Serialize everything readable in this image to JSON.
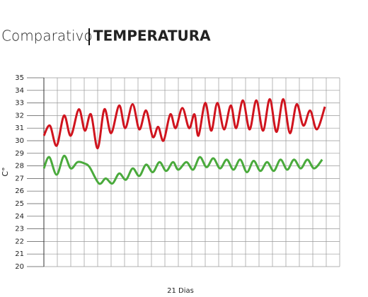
{
  "chart_data": {
    "type": "line",
    "title": "Comparativo",
    "subtitle": "TEMPERATURA",
    "y_label": "C°",
    "x_label": "21 Dias",
    "xlim": [
      0,
      22
    ],
    "ylim": [
      20,
      35
    ],
    "yticks": [
      20,
      21,
      22,
      23,
      24,
      25,
      26,
      27,
      28,
      29,
      30,
      31,
      32,
      33,
      34,
      35
    ],
    "grid": true,
    "series": [
      {
        "color": "#d0141e",
        "x": [
          0,
          0.45,
          0.95,
          1.5,
          2.0,
          2.6,
          3.05,
          3.5,
          4.0,
          4.5,
          5.0,
          5.6,
          6.05,
          6.6,
          7.1,
          7.6,
          8.1,
          8.5,
          8.9,
          9.4,
          9.8,
          10.3,
          10.8,
          11.2,
          11.5,
          12.0,
          12.45,
          12.9,
          13.4,
          13.9,
          14.3,
          14.8,
          15.3,
          15.8,
          16.3,
          16.8,
          17.3,
          17.8,
          18.3,
          18.8,
          19.3,
          19.8,
          20.3,
          20.9
        ],
        "values": [
          30.4,
          31.2,
          29.6,
          32.0,
          30.4,
          32.5,
          30.8,
          32.1,
          29.4,
          32.5,
          30.6,
          32.8,
          31.0,
          32.9,
          30.9,
          32.4,
          30.3,
          31.1,
          30.0,
          32.1,
          31.0,
          32.6,
          31.0,
          32.1,
          30.4,
          33.0,
          30.8,
          33.0,
          30.9,
          32.8,
          31.0,
          33.2,
          30.9,
          33.2,
          30.8,
          33.3,
          30.7,
          33.3,
          30.6,
          32.9,
          31.2,
          32.4,
          30.9,
          32.7
        ]
      },
      {
        "color": "#4aaa3c",
        "x": [
          0,
          0.4,
          0.95,
          1.5,
          2.0,
          2.5,
          3.0,
          3.4,
          4.1,
          4.6,
          5.1,
          5.6,
          6.1,
          6.6,
          7.1,
          7.6,
          8.1,
          8.6,
          9.1,
          9.6,
          10.0,
          10.6,
          11.1,
          11.6,
          12.1,
          12.6,
          13.1,
          13.6,
          14.1,
          14.6,
          15.1,
          15.6,
          16.1,
          16.6,
          17.1,
          17.6,
          18.1,
          18.6,
          19.1,
          19.6,
          20.1,
          20.7
        ],
        "values": [
          27.8,
          28.7,
          27.3,
          28.8,
          27.8,
          28.3,
          28.2,
          27.9,
          26.6,
          27.0,
          26.6,
          27.4,
          26.9,
          27.8,
          27.2,
          28.1,
          27.5,
          28.3,
          27.6,
          28.3,
          27.7,
          28.3,
          27.7,
          28.7,
          27.9,
          28.6,
          27.8,
          28.5,
          27.7,
          28.5,
          27.5,
          28.4,
          27.6,
          28.3,
          27.6,
          28.5,
          27.7,
          28.5,
          27.8,
          28.5,
          27.8,
          28.5
        ]
      }
    ]
  }
}
